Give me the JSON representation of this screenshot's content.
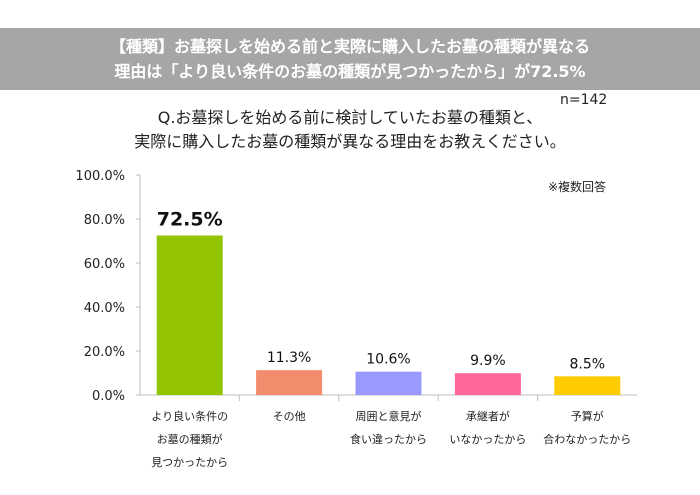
{
  "banner": {
    "line1": "【種類】お墓探しを始める前と実際に購入したお墓の種類が異なる",
    "line2": "理由は「より良い条件のお墓の種類が見つかったから」が72.5%"
  },
  "sample": "n=142",
  "question": {
    "line1": "Q.お墓探しを始める前に検討していたお墓の種類と、",
    "line2": "実際に購入したお墓の種類が異なる理由をお教えください。"
  },
  "note": "※複数回答",
  "chart_data": {
    "type": "bar",
    "categories": [
      [
        "より良い条件の",
        "お墓の種類が",
        "見つかったから"
      ],
      [
        "その他"
      ],
      [
        "周囲と意見が",
        "食い違ったから"
      ],
      [
        "承継者が",
        "いなかったから"
      ],
      [
        "予算が",
        "合わなかったから"
      ]
    ],
    "values": [
      72.5,
      11.3,
      10.6,
      9.9,
      8.5
    ],
    "labels": [
      "72.5%",
      "11.3%",
      "10.6%",
      "9.9%",
      "8.5%"
    ],
    "colors": [
      "#92c400",
      "#f28c6c",
      "#9999ff",
      "#ff6699",
      "#ffcc00"
    ],
    "ylim": [
      0,
      100
    ],
    "yticks": [
      "0.0%",
      "20.0%",
      "40.0%",
      "60.0%",
      "80.0%",
      "100.0%"
    ]
  }
}
